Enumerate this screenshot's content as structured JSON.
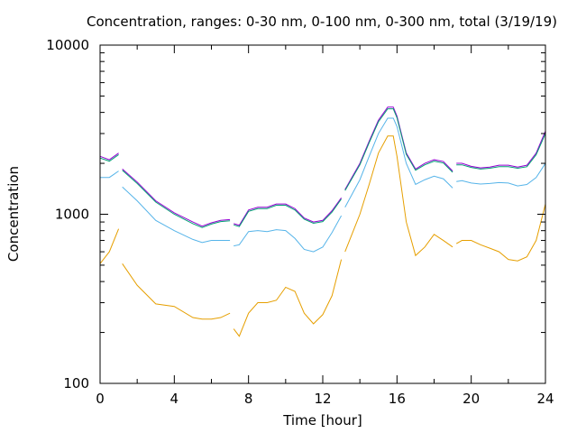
{
  "chart_data": {
    "type": "line",
    "title": "Concentration, ranges: 0-30 nm, 0-100 nm, 0-300 nm, total (3/19/19)",
    "xlabel": "Time [hour]",
    "ylabel": "Concentration",
    "xlim": [
      0,
      24
    ],
    "ylim": [
      100,
      10000
    ],
    "yscale": "log",
    "xticks": [
      0,
      4,
      8,
      12,
      16,
      20,
      24
    ],
    "xtick_labels": [
      "0",
      "4",
      "8",
      "12",
      "16",
      "20",
      "24"
    ],
    "yticks": [
      100,
      1000,
      10000
    ],
    "ytick_labels": [
      "100",
      "1000",
      "10000"
    ],
    "grid": false,
    "series": [
      {
        "color": "#9400d3",
        "x": [
          0,
          0.5,
          1.0,
          null,
          1.2,
          2,
          3,
          4,
          5,
          5.5,
          6,
          6.5,
          7,
          null,
          7.2,
          7.5,
          8,
          8.5,
          9,
          9.5,
          10,
          10.5,
          11,
          11.5,
          12,
          12.5,
          13,
          null,
          13.2,
          14,
          14.5,
          15,
          15.5,
          15.8,
          16,
          16.5,
          17,
          17.5,
          18,
          18.5,
          19,
          null,
          19.2,
          19.5,
          20,
          20.5,
          21,
          21.5,
          22,
          22.5,
          23,
          23.5,
          24
        ],
        "y": [
          2200,
          2100,
          2300,
          null,
          1850,
          1550,
          1200,
          1020,
          900,
          850,
          890,
          920,
          930,
          null,
          880,
          860,
          1060,
          1100,
          1100,
          1150,
          1150,
          1080,
          950,
          900,
          920,
          1050,
          1250,
          null,
          1400,
          2000,
          2700,
          3600,
          4300,
          4300,
          3800,
          2300,
          1850,
          2000,
          2100,
          2050,
          1800,
          null,
          2000,
          2000,
          1920,
          1880,
          1900,
          1950,
          1950,
          1900,
          1950,
          2300,
          3100
        ]
      },
      {
        "color": "#009e73",
        "x": [
          0,
          0.5,
          1.0,
          null,
          1.2,
          2,
          3,
          4,
          5,
          5.5,
          6,
          6.5,
          7,
          null,
          7.2,
          7.5,
          8,
          8.5,
          9,
          9.5,
          10,
          10.5,
          11,
          11.5,
          12,
          12.5,
          13,
          null,
          13.2,
          14,
          14.5,
          15,
          15.5,
          15.8,
          16,
          16.5,
          17,
          17.5,
          18,
          18.5,
          19,
          null,
          19.2,
          19.5,
          20,
          20.5,
          21,
          21.5,
          22,
          22.5,
          23,
          23.5,
          24
        ],
        "y": [
          2150,
          2060,
          2250,
          null,
          1820,
          1520,
          1180,
          1000,
          880,
          835,
          875,
          905,
          915,
          null,
          865,
          845,
          1040,
          1080,
          1080,
          1130,
          1130,
          1060,
          935,
          885,
          905,
          1030,
          1230,
          null,
          1380,
          1960,
          2650,
          3520,
          4200,
          4200,
          3720,
          2260,
          1820,
          1960,
          2060,
          2010,
          1770,
          null,
          1960,
          1960,
          1890,
          1850,
          1870,
          1910,
          1910,
          1870,
          1910,
          2250,
          3000
        ]
      },
      {
        "color": "#56b4e9",
        "x": [
          0,
          0.5,
          1.0,
          null,
          1.2,
          2,
          3,
          4,
          5,
          5.5,
          6,
          6.5,
          7,
          null,
          7.2,
          7.5,
          8,
          8.5,
          9,
          9.5,
          10,
          10.5,
          11,
          11.5,
          12,
          12.5,
          13,
          null,
          13.2,
          14,
          14.5,
          15,
          15.5,
          15.8,
          16,
          16.5,
          17,
          17.5,
          18,
          18.5,
          19,
          null,
          19.2,
          19.5,
          20,
          20.5,
          21,
          21.5,
          22,
          22.5,
          23,
          23.5,
          24
        ],
        "y": [
          1650,
          1650,
          1800,
          null,
          1450,
          1200,
          920,
          800,
          710,
          680,
          700,
          700,
          700,
          null,
          650,
          660,
          790,
          800,
          790,
          810,
          800,
          720,
          620,
          600,
          640,
          780,
          980,
          null,
          1100,
          1600,
          2200,
          3000,
          3700,
          3700,
          3300,
          2000,
          1500,
          1600,
          1680,
          1620,
          1430,
          null,
          1560,
          1580,
          1530,
          1510,
          1520,
          1540,
          1530,
          1470,
          1500,
          1650,
          2000
        ]
      },
      {
        "color": "#e69f00",
        "x": [
          0,
          0.5,
          1.0,
          null,
          1.2,
          2,
          3,
          4,
          5,
          5.5,
          6,
          6.5,
          7,
          null,
          7.2,
          7.5,
          8,
          8.5,
          9,
          9.5,
          10,
          10.5,
          11,
          11.5,
          12,
          12.5,
          13,
          null,
          13.2,
          14,
          14.5,
          15,
          15.5,
          15.8,
          16,
          16.5,
          17,
          17.5,
          18,
          18.5,
          19,
          null,
          19.2,
          19.5,
          20,
          20.5,
          21,
          21.5,
          22,
          22.5,
          23,
          23.5,
          24
        ],
        "y": [
          510,
          600,
          820,
          null,
          510,
          380,
          295,
          285,
          245,
          240,
          240,
          245,
          260,
          null,
          210,
          190,
          260,
          300,
          300,
          310,
          370,
          350,
          260,
          225,
          255,
          330,
          540,
          null,
          600,
          1000,
          1500,
          2300,
          2900,
          2900,
          2200,
          900,
          570,
          640,
          760,
          700,
          640,
          null,
          670,
          700,
          700,
          660,
          630,
          600,
          540,
          530,
          560,
          700,
          1150
        ]
      }
    ]
  }
}
